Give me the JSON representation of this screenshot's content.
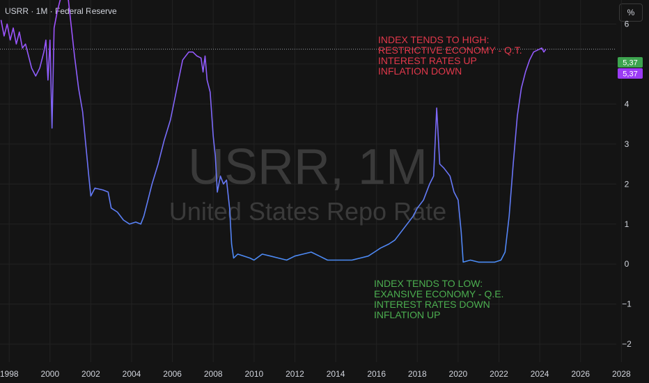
{
  "header": {
    "title": "USRR · 1M · Federal Reserve",
    "unit_button": "%"
  },
  "watermark": {
    "symbol": "USRR, 1M",
    "name": "United States Repo Rate"
  },
  "colors": {
    "background": "#141414",
    "grid": "#222222",
    "text": "#d1d4dc",
    "high_text": "#e2384b",
    "low_text": "#4caf50",
    "line_high": "#a64dff",
    "line_low": "#4a8cf5",
    "badge_green": "#3da44f",
    "badge_purple": "#9b3bf5",
    "ref_line": "#9aa0a6",
    "watermark": "#3a3a3a"
  },
  "annotations": {
    "high": [
      "INDEX TENDS TO HIGH:",
      "RESTRICTIVE ECONOMY - Q.T.",
      "INTEREST RATES UP",
      "INFLATION DOWN"
    ],
    "low": [
      "INDEX TENDS TO LOW:",
      "EXANSIVE ECONOMY - Q.E.",
      "INTEREST RATES DOWN",
      "INFLATION UP"
    ]
  },
  "price_badges": [
    "5,37",
    "5,37"
  ],
  "chart_data": {
    "type": "line",
    "title": "USRR, 1M",
    "subtitle": "United States Repo Rate",
    "x_ticks": [
      "1998",
      "2000",
      "2002",
      "2004",
      "2006",
      "2008",
      "2010",
      "2012",
      "2014",
      "2016",
      "2018",
      "2020",
      "2022",
      "2024",
      "2026",
      "2028"
    ],
    "y_ticks": [
      "6",
      "5",
      "4",
      "3",
      "2",
      "1",
      "0",
      "−1",
      "−2"
    ],
    "xlim": [
      1997.55,
      2027.75
    ],
    "ylim": [
      -2.45,
      6.6
    ],
    "current_value": 5.37,
    "grid": true,
    "series": [
      {
        "points": [
          [
            1997.6,
            6.1
          ],
          [
            1997.75,
            5.7
          ],
          [
            1997.9,
            6.0
          ],
          [
            1998.05,
            5.6
          ],
          [
            1998.2,
            5.9
          ],
          [
            1998.35,
            5.5
          ],
          [
            1998.5,
            5.8
          ],
          [
            1998.65,
            5.4
          ],
          [
            1998.8,
            5.5
          ],
          [
            1998.95,
            5.2
          ],
          [
            1999.1,
            4.9
          ],
          [
            1999.3,
            4.7
          ],
          [
            1999.5,
            4.9
          ],
          [
            1999.7,
            5.3
          ],
          [
            1999.8,
            5.6
          ],
          [
            1999.9,
            4.6
          ],
          [
            2000.0,
            5.6
          ],
          [
            2000.1,
            3.4
          ],
          [
            2000.2,
            5.9
          ],
          [
            2000.35,
            6.3
          ],
          [
            2000.5,
            6.6
          ],
          [
            2000.7,
            6.7
          ],
          [
            2000.9,
            6.6
          ],
          [
            2001.05,
            5.9
          ],
          [
            2001.2,
            5.2
          ],
          [
            2001.4,
            4.4
          ],
          [
            2001.6,
            3.8
          ],
          [
            2001.75,
            3.0
          ],
          [
            2001.9,
            2.2
          ],
          [
            2002.0,
            1.7
          ],
          [
            2002.2,
            1.9
          ],
          [
            2002.6,
            1.85
          ],
          [
            2002.85,
            1.8
          ],
          [
            2003.0,
            1.4
          ],
          [
            2003.3,
            1.3
          ],
          [
            2003.6,
            1.1
          ],
          [
            2003.9,
            1.0
          ],
          [
            2004.2,
            1.05
          ],
          [
            2004.45,
            1.0
          ],
          [
            2004.6,
            1.2
          ],
          [
            2004.8,
            1.6
          ],
          [
            2005.0,
            2.0
          ],
          [
            2005.3,
            2.5
          ],
          [
            2005.6,
            3.1
          ],
          [
            2005.9,
            3.6
          ],
          [
            2006.1,
            4.1
          ],
          [
            2006.3,
            4.6
          ],
          [
            2006.5,
            5.1
          ],
          [
            2006.8,
            5.3
          ],
          [
            2007.0,
            5.3
          ],
          [
            2007.2,
            5.2
          ],
          [
            2007.4,
            5.15
          ],
          [
            2007.5,
            4.8
          ],
          [
            2007.6,
            5.2
          ],
          [
            2007.7,
            4.6
          ],
          [
            2007.85,
            4.3
          ],
          [
            2008.0,
            3.2
          ],
          [
            2008.1,
            2.7
          ],
          [
            2008.2,
            1.8
          ],
          [
            2008.35,
            2.2
          ],
          [
            2008.5,
            2.0
          ],
          [
            2008.65,
            2.1
          ],
          [
            2008.8,
            1.4
          ],
          [
            2008.9,
            0.5
          ],
          [
            2009.0,
            0.15
          ],
          [
            2009.2,
            0.25
          ],
          [
            2009.5,
            0.2
          ],
          [
            2009.8,
            0.15
          ],
          [
            2010.0,
            0.1
          ],
          [
            2010.4,
            0.25
          ],
          [
            2010.8,
            0.2
          ],
          [
            2011.2,
            0.15
          ],
          [
            2011.6,
            0.1
          ],
          [
            2012.0,
            0.2
          ],
          [
            2012.4,
            0.25
          ],
          [
            2012.8,
            0.3
          ],
          [
            2013.2,
            0.2
          ],
          [
            2013.6,
            0.1
          ],
          [
            2014.0,
            0.1
          ],
          [
            2014.4,
            0.1
          ],
          [
            2014.8,
            0.1
          ],
          [
            2015.2,
            0.15
          ],
          [
            2015.6,
            0.2
          ],
          [
            2015.9,
            0.3
          ],
          [
            2016.2,
            0.4
          ],
          [
            2016.6,
            0.5
          ],
          [
            2016.9,
            0.6
          ],
          [
            2017.2,
            0.8
          ],
          [
            2017.5,
            1.0
          ],
          [
            2017.8,
            1.2
          ],
          [
            2018.0,
            1.4
          ],
          [
            2018.3,
            1.6
          ],
          [
            2018.6,
            2.0
          ],
          [
            2018.8,
            2.2
          ],
          [
            2018.95,
            3.9
          ],
          [
            2019.1,
            2.5
          ],
          [
            2019.3,
            2.4
          ],
          [
            2019.6,
            2.2
          ],
          [
            2019.8,
            1.8
          ],
          [
            2020.0,
            1.6
          ],
          [
            2020.15,
            0.8
          ],
          [
            2020.25,
            0.05
          ],
          [
            2020.6,
            0.1
          ],
          [
            2021.0,
            0.05
          ],
          [
            2021.4,
            0.05
          ],
          [
            2021.8,
            0.05
          ],
          [
            2022.1,
            0.1
          ],
          [
            2022.3,
            0.3
          ],
          [
            2022.5,
            1.2
          ],
          [
            2022.7,
            2.5
          ],
          [
            2022.9,
            3.7
          ],
          [
            2023.1,
            4.4
          ],
          [
            2023.3,
            4.8
          ],
          [
            2023.5,
            5.1
          ],
          [
            2023.7,
            5.3
          ],
          [
            2023.9,
            5.35
          ],
          [
            2024.1,
            5.4
          ],
          [
            2024.2,
            5.3
          ],
          [
            2024.3,
            5.37
          ]
        ]
      }
    ]
  }
}
